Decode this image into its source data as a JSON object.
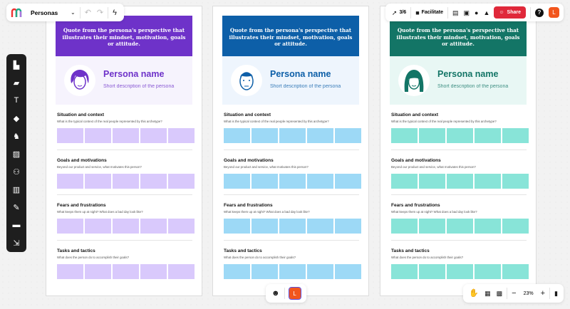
{
  "board": {
    "title": "Personas",
    "progress": "3/6",
    "facilitate": "Facilitate",
    "share": "Share",
    "avatar_letter": "L",
    "zoom": "23%"
  },
  "colors": {
    "share": "#e0283a",
    "avatar": "#f2561d"
  },
  "quote": "Quote from the persona's perspective that illustrates their mindset, motivation, goals or attitude.",
  "persona_name": "Persona name",
  "persona_desc": "Short description of the persona",
  "sections": [
    {
      "title": "Situation and context",
      "desc": "What is the typical context of the real people represented by this archetype?"
    },
    {
      "title": "Goals and motivations",
      "desc": "Beyond our product and service, what motivates this person?"
    },
    {
      "title": "Fears and frustrations",
      "desc": "What keeps them up at night? What does a bad day look like?"
    },
    {
      "title": "Tasks and tactics",
      "desc": "What does the person do to accomplish their goals?"
    }
  ],
  "cards": [
    {
      "accent": "#6e32c9",
      "light": "#f6f3fd",
      "sticky": "#d9c9fc",
      "avatar": "woman-short-hair"
    },
    {
      "accent": "#0d5fa8",
      "light": "#eef5fd",
      "sticky": "#9dd9f6",
      "avatar": "man"
    },
    {
      "accent": "#137566",
      "light": "#e8f7f4",
      "sticky": "#88e4d8",
      "avatar": "woman-long-hair"
    }
  ],
  "left_tools": [
    "frames-icon",
    "sticky-note-icon",
    "text-icon",
    "shapes-icon",
    "templates-icon",
    "image-icon",
    "mindmap-icon",
    "table-icon",
    "pen-icon",
    "archive-icon",
    "upload-icon"
  ]
}
